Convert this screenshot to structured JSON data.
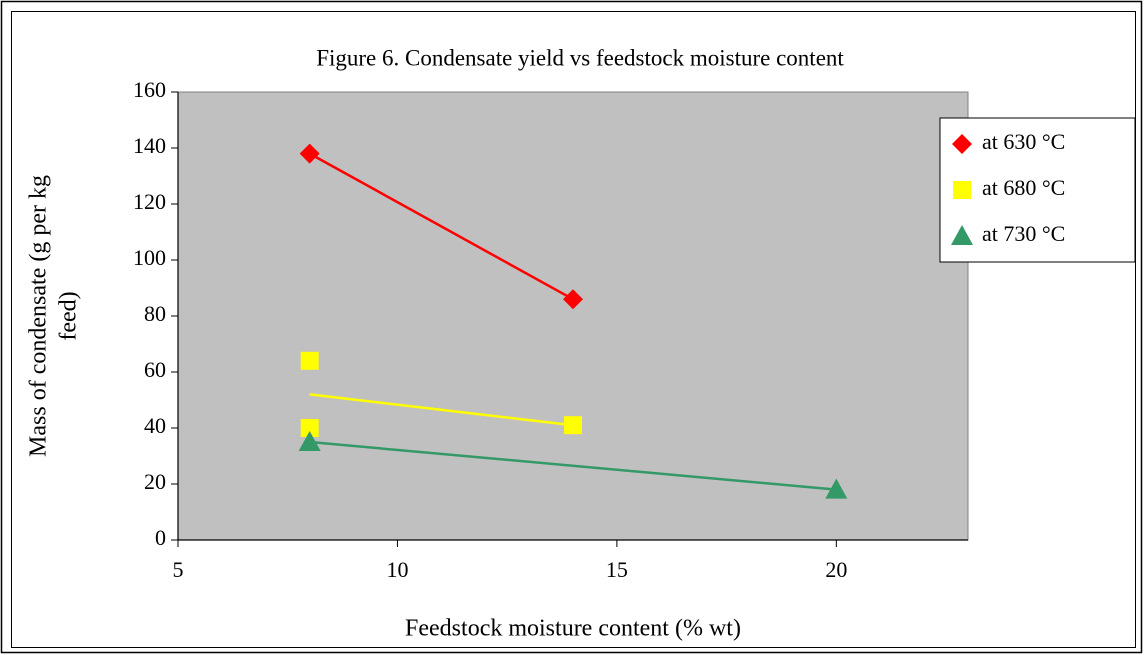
{
  "chart_data": {
    "type": "scatter",
    "title": "Figure 6. Condensate yield vs feedstock moisture content",
    "x_label": "Feedstock moisture content (% wt)",
    "y_label": [
      "Mass of condensate (g per kg",
      "feed)"
    ],
    "xlim": [
      5,
      23
    ],
    "xticks": [
      5,
      10,
      15,
      20
    ],
    "ylim": [
      0,
      160
    ],
    "yticks": [
      0,
      20,
      40,
      60,
      80,
      100,
      120,
      140,
      160
    ],
    "trendline": true,
    "legend": "right",
    "plot_background": "#c0c0c0",
    "series": [
      {
        "name": "at 630 °C",
        "color": "#ff0000",
        "marker": "diamond",
        "x": [
          8,
          14
        ],
        "values": [
          138,
          86
        ]
      },
      {
        "name": "at 680 °C",
        "color": "#ffff00",
        "marker": "square",
        "x": [
          8,
          8,
          14
        ],
        "values": [
          64,
          40,
          41
        ]
      },
      {
        "name": "at 730 °C",
        "color": "#339966",
        "marker": "triangle",
        "x": [
          8,
          20
        ],
        "values": [
          35,
          18
        ]
      }
    ]
  }
}
